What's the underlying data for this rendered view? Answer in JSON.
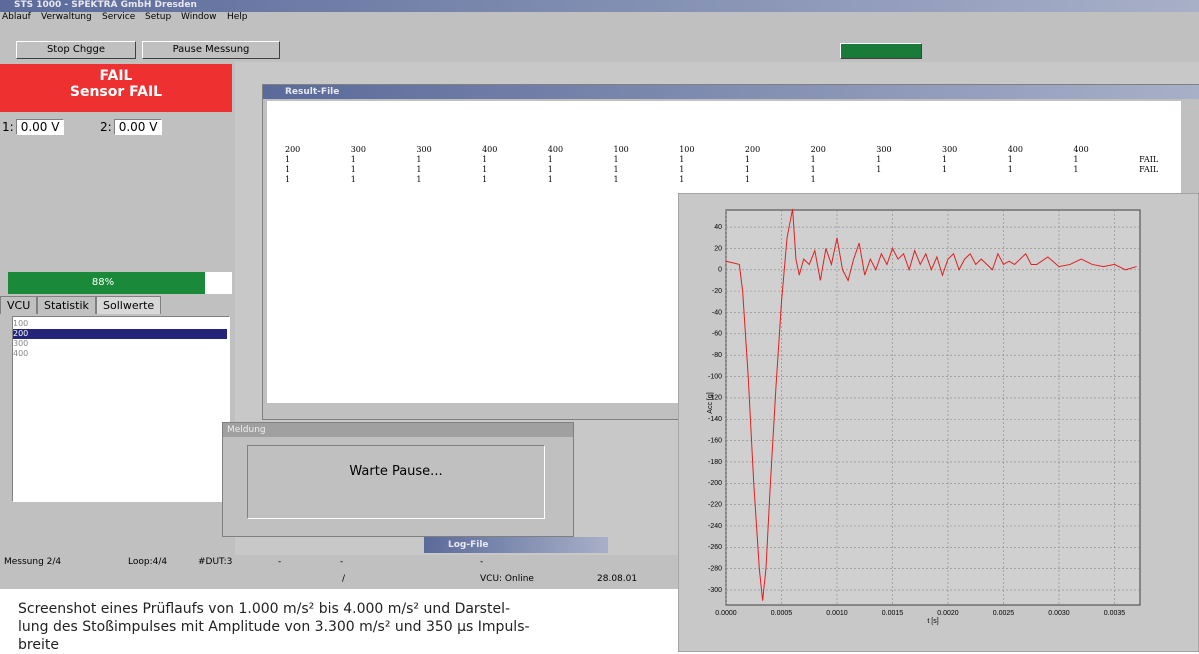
{
  "window": {
    "title": "STS 1000 - SPEKTRA GmbH Dresden",
    "menu": [
      "Ablauf",
      "Verwaltung",
      "Service",
      "Setup",
      "Window",
      "Help"
    ],
    "toolbar": [
      "Stop Chgge",
      "Pause Messung"
    ]
  },
  "left_panel": {
    "status": "FAIL",
    "detail": "Sensor FAIL",
    "channels": [
      {
        "label": "1:",
        "value": "0.00 V"
      },
      {
        "label": "2:",
        "value": "0.00 V"
      }
    ],
    "progress": "88%",
    "tabs": [
      "VCU",
      "Statistik",
      "Sollwerte"
    ],
    "list": [
      "100",
      "200",
      "300",
      "400"
    ]
  },
  "result_file": {
    "title": "Result-File",
    "rows": [
      [
        "200",
        "300",
        "300",
        "400",
        "400",
        "100",
        "100",
        "200",
        "200",
        "300",
        "300",
        "400",
        "400"
      ],
      [
        "1",
        "1",
        "1",
        "1",
        "1",
        "1",
        "1",
        "1",
        "1",
        "1",
        "1",
        "1",
        "1",
        "FAIL"
      ],
      [
        "1",
        "1",
        "1",
        "1",
        "1",
        "1",
        "1",
        "1",
        "1",
        "1",
        "1",
        "1",
        "1",
        "FAIL"
      ],
      [
        "1",
        "1",
        "1",
        "1",
        "1",
        "1",
        "1",
        "1",
        "1"
      ]
    ]
  },
  "dialog": {
    "title": "Meldung",
    "message": "Warte Pause..."
  },
  "log_file": {
    "title": "Log-File"
  },
  "status_bar": {
    "row1": [
      "Messung 2/4",
      "Loop:4/4",
      "#DUT:3",
      "-",
      "-",
      "-"
    ],
    "row2": [
      "/",
      "VCU: Online",
      "28.08.01"
    ]
  },
  "caption": [
    "Screenshot eines Prüflaufs von 1.000 m/s² bis 4.000 m/s² und Darstel-",
    "lung des Stoßimpulses mit Amplitude von 3.300 m/s² und 350 µs Impuls-",
    "breite"
  ],
  "chart_data": {
    "type": "line",
    "xlabel": "t [s]",
    "ylabel": "Acc [g]",
    "x": [
      0,
      0.00012,
      0.00015,
      0.0002,
      0.00025,
      0.0003,
      0.00033,
      0.00036,
      0.0004,
      0.00045,
      0.0005,
      0.00055,
      0.0006,
      0.00063,
      0.00066,
      0.0007,
      0.00075,
      0.0008,
      0.00085,
      0.0009,
      0.00095,
      0.001,
      0.00105,
      0.0011,
      0.00115,
      0.0012,
      0.00125,
      0.0013,
      0.00135,
      0.0014,
      0.00145,
      0.0015,
      0.00155,
      0.0016,
      0.00165,
      0.0017,
      0.00175,
      0.0018,
      0.00185,
      0.0019,
      0.00195,
      0.002,
      0.00205,
      0.0021,
      0.00215,
      0.0022,
      0.00225,
      0.0023,
      0.0024,
      0.00245,
      0.0025,
      0.00255,
      0.0026,
      0.0027,
      0.00275,
      0.0028,
      0.0029,
      0.003,
      0.0031,
      0.0032,
      0.0033,
      0.0034,
      0.0035,
      0.0036,
      0.0037
    ],
    "series": [
      {
        "color": "#e02020",
        "values": [
          8,
          5,
          -20,
          -100,
          -200,
          -280,
          -310,
          -280,
          -200,
          -110,
          -30,
          30,
          57,
          10,
          -5,
          10,
          5,
          18,
          -10,
          20,
          5,
          30,
          0,
          -10,
          10,
          25,
          -5,
          10,
          0,
          15,
          5,
          20,
          10,
          15,
          0,
          18,
          5,
          15,
          0,
          12,
          -5,
          10,
          15,
          0,
          10,
          15,
          5,
          10,
          0,
          15,
          5,
          8,
          5,
          15,
          5,
          5,
          12,
          3,
          5,
          10,
          5,
          3,
          5,
          0,
          3
        ]
      }
    ],
    "xlim": [
      0,
      0.00373
    ],
    "ylim": [
      -314,
      56
    ],
    "xticks": [
      {
        "value": 0,
        "label": "0.0000"
      },
      {
        "value": 0.0005,
        "label": "0.0005"
      },
      {
        "value": 0.001,
        "label": "0.0010"
      },
      {
        "value": 0.0015,
        "label": "0.0015"
      },
      {
        "value": 0.002,
        "label": "0.0020"
      },
      {
        "value": 0.0025,
        "label": "0.0025"
      },
      {
        "value": 0.003,
        "label": "0.0030"
      },
      {
        "value": 0.0035,
        "label": "0.0035"
      }
    ],
    "yticks": [
      40,
      20,
      0,
      -20,
      -40,
      -60,
      -80,
      -100,
      -120,
      -140,
      -160,
      -180,
      -200,
      -220,
      -240,
      -260,
      -280,
      -300
    ],
    "grid": true
  }
}
